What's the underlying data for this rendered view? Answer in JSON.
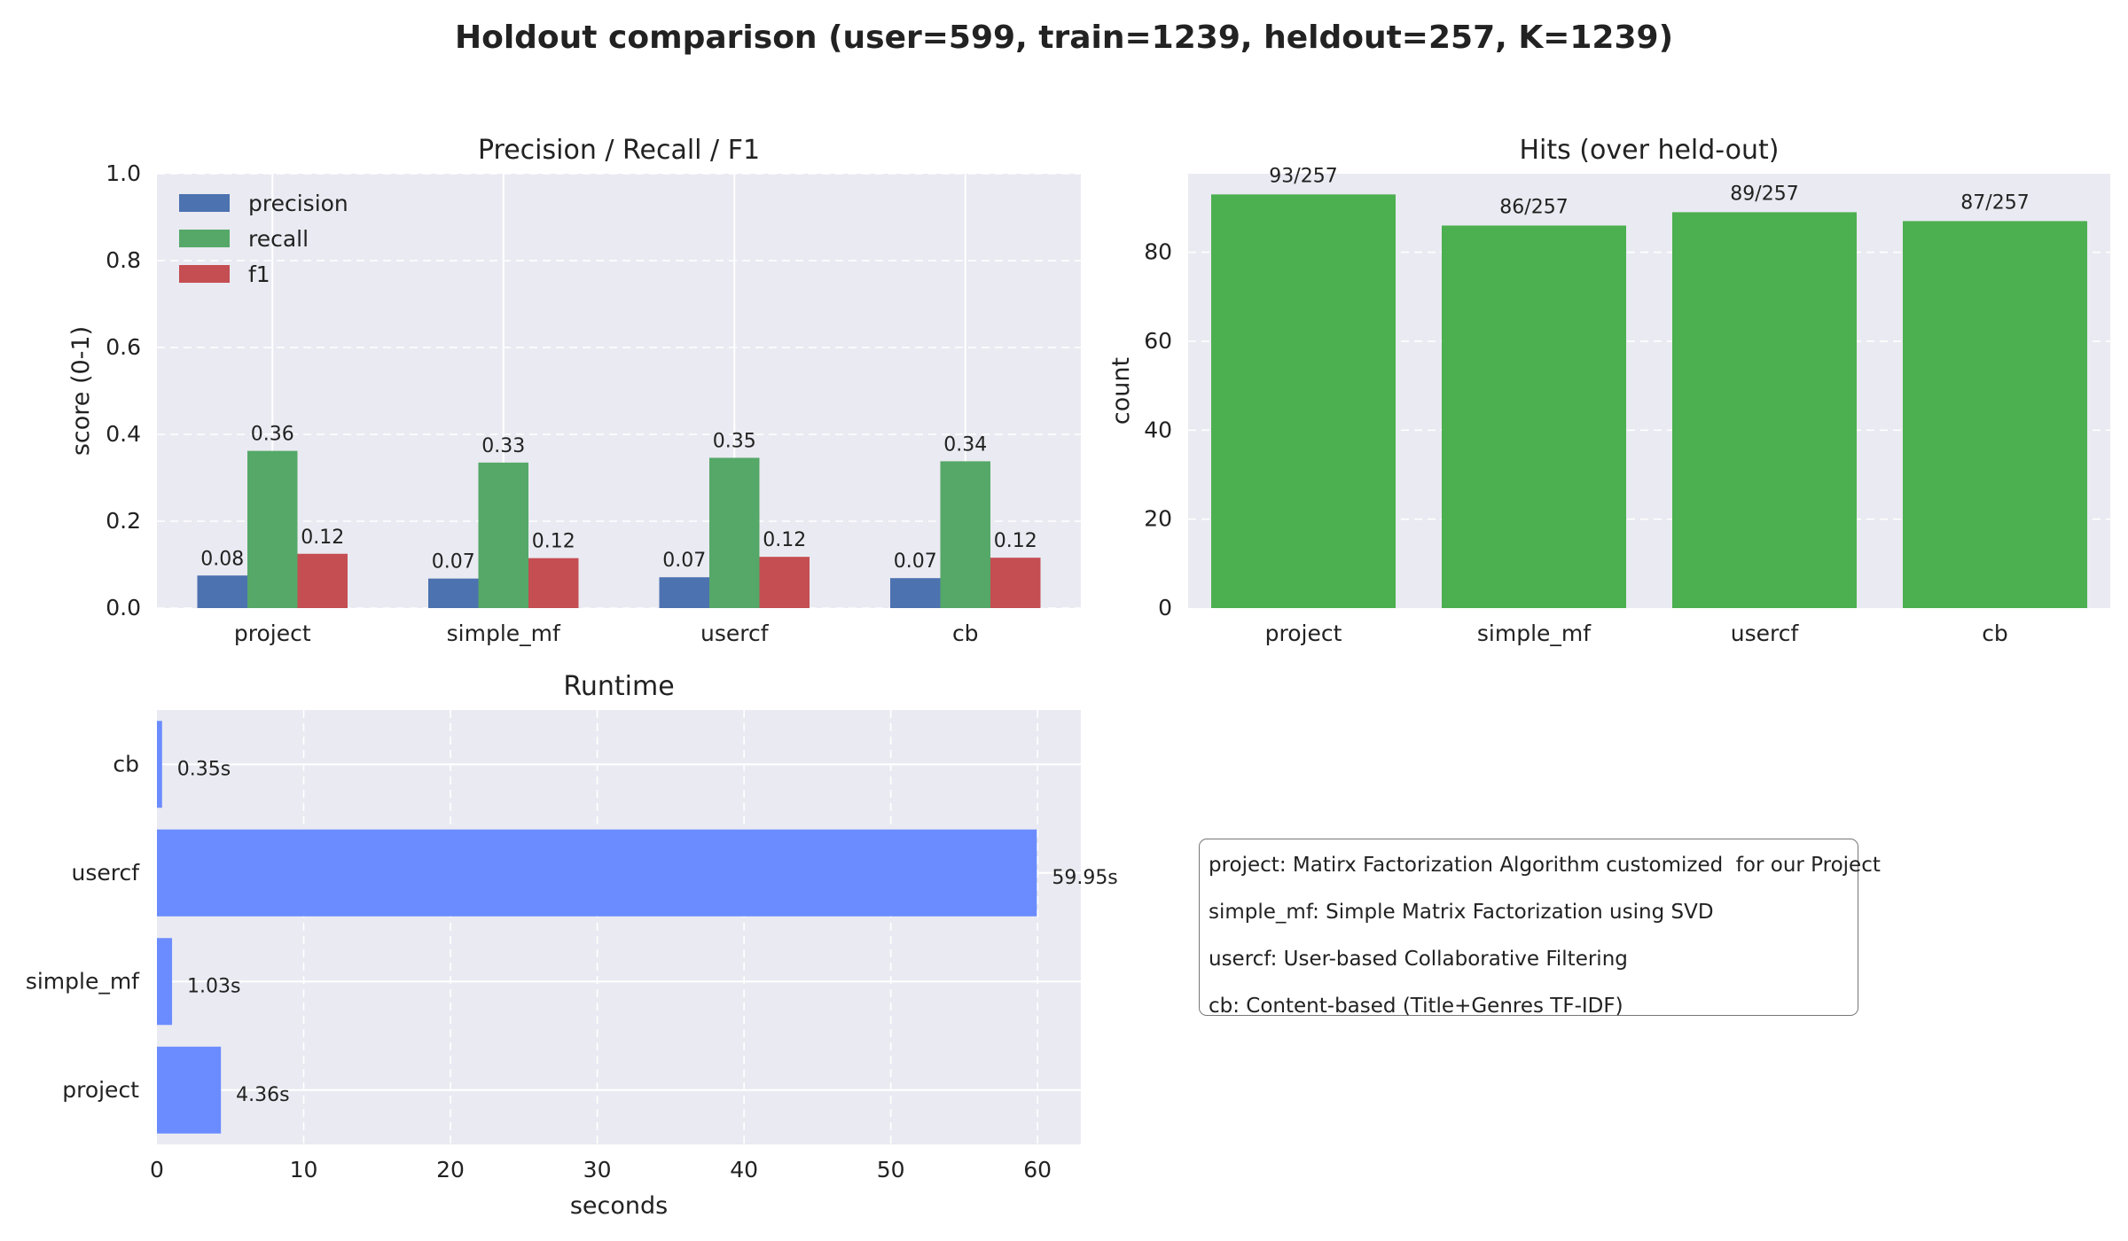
{
  "figure_title": "Holdout comparison (user=599, train=1239, heldout=257, K=1239)",
  "chart_data": [
    {
      "type": "bar",
      "title": "Precision / Recall / F1",
      "xlabel": "",
      "ylabel": "score (0-1)",
      "ylim": [
        0,
        1.0
      ],
      "yticks": [
        "0.0",
        "0.2",
        "0.4",
        "0.6",
        "0.8",
        "1.0"
      ],
      "categories": [
        "project",
        "simple_mf",
        "usercf",
        "cb"
      ],
      "legend_position": "upper-left",
      "grid": true,
      "series": [
        {
          "name": "precision",
          "color": "#4c72b0",
          "values": [
            0.075,
            0.068,
            0.071,
            0.069
          ],
          "labels": [
            "0.08",
            "0.07",
            "0.07",
            "0.07"
          ]
        },
        {
          "name": "recall",
          "color": "#55a868",
          "values": [
            0.362,
            0.335,
            0.346,
            0.338
          ],
          "labels": [
            "0.36",
            "0.33",
            "0.35",
            "0.34"
          ]
        },
        {
          "name": "f1",
          "color": "#c44e52",
          "values": [
            0.125,
            0.115,
            0.118,
            0.116
          ],
          "labels": [
            "0.12",
            "0.12",
            "0.12",
            "0.12"
          ]
        }
      ]
    },
    {
      "type": "bar",
      "title": "Hits (over held-out)",
      "xlabel": "",
      "ylabel": "count",
      "ylim": [
        0,
        97.65
      ],
      "yticks": [
        "0",
        "20",
        "40",
        "60",
        "80"
      ],
      "categories": [
        "project",
        "simple_mf",
        "usercf",
        "cb"
      ],
      "grid": true,
      "bar_color": "#4caf50",
      "values": [
        93,
        86,
        89,
        87
      ],
      "labels": [
        "93/257",
        "86/257",
        "89/257",
        "87/257"
      ]
    },
    {
      "type": "bar",
      "orientation": "horizontal",
      "title": "Runtime",
      "xlabel": "seconds",
      "ylabel": "",
      "xlim": [
        0,
        62.95
      ],
      "xticks": [
        "0",
        "10",
        "20",
        "30",
        "40",
        "50",
        "60"
      ],
      "categories": [
        "project",
        "simple_mf",
        "usercf",
        "cb"
      ],
      "grid": true,
      "bar_color": "#6b8cff",
      "values": [
        4.36,
        1.03,
        59.95,
        0.35
      ],
      "labels": [
        "4.36s",
        "1.03s",
        "59.95s",
        "0.35s"
      ]
    }
  ],
  "notes": [
    "project: Matirx Factorization Algorithm customized  for our Project",
    "simple_mf: Simple Matrix Factorization using SVD",
    "usercf: User-based Collaborative Filtering",
    "cb: Content-based (Title+Genres TF-IDF)"
  ]
}
